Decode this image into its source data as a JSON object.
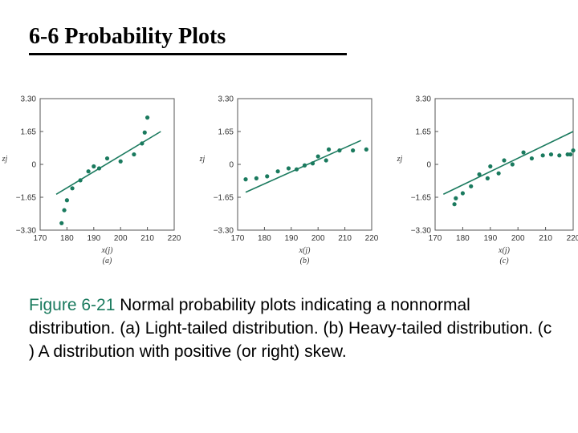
{
  "slide": {
    "title": "6-6 Probability Plots"
  },
  "caption": {
    "figure_label": "Figure 6-21",
    "text": " Normal probability plots indicating a nonnormal distribution. (a) Light-tailed distribution. (b) Heavy-tailed distribution. (c ) A distribution with positive (or right) skew."
  },
  "colors": {
    "series": "#1a7a5e",
    "axis": "#555555",
    "caption_label": "#1a7a5e"
  },
  "chart_data": [
    {
      "type": "scatter",
      "panel_label": "(a)",
      "xlabel": "x(j)",
      "ylabel": "zj",
      "xlim": [
        170,
        220
      ],
      "ylim": [
        -3.3,
        3.3
      ],
      "x_ticks": [
        "170",
        "180",
        "190",
        "200",
        "210",
        "220"
      ],
      "y_ticks": [
        "3.30",
        "1.65",
        "0",
        "−1.65",
        "−3.30"
      ],
      "points": [
        {
          "x": 178,
          "y": -2.95
        },
        {
          "x": 179,
          "y": -2.3
        },
        {
          "x": 180,
          "y": -1.8
        },
        {
          "x": 182,
          "y": -1.2
        },
        {
          "x": 185,
          "y": -0.8
        },
        {
          "x": 188,
          "y": -0.35
        },
        {
          "x": 190,
          "y": -0.1
        },
        {
          "x": 192,
          "y": -0.2
        },
        {
          "x": 195,
          "y": 0.3
        },
        {
          "x": 200,
          "y": 0.15
        },
        {
          "x": 205,
          "y": 0.5
        },
        {
          "x": 208,
          "y": 1.05
        },
        {
          "x": 209,
          "y": 1.6
        },
        {
          "x": 210,
          "y": 2.35
        }
      ],
      "fit_line": {
        "x": [
          176,
          215
        ],
        "y": [
          -1.5,
          1.65
        ]
      }
    },
    {
      "type": "scatter",
      "panel_label": "(b)",
      "xlabel": "x(j)",
      "ylabel": "zj",
      "xlim": [
        170,
        220
      ],
      "ylim": [
        -3.3,
        3.3
      ],
      "x_ticks": [
        "170",
        "180",
        "190",
        "200",
        "210",
        "220"
      ],
      "y_ticks": [
        "3.30",
        "1.65",
        "0",
        "−1.65",
        "−3.30"
      ],
      "points": [
        {
          "x": 173,
          "y": -0.75
        },
        {
          "x": 177,
          "y": -0.7
        },
        {
          "x": 181,
          "y": -0.6
        },
        {
          "x": 185,
          "y": -0.35
        },
        {
          "x": 189,
          "y": -0.2
        },
        {
          "x": 192,
          "y": -0.25
        },
        {
          "x": 195,
          "y": -0.05
        },
        {
          "x": 198,
          "y": 0.05
        },
        {
          "x": 200,
          "y": 0.4
        },
        {
          "x": 203,
          "y": 0.2
        },
        {
          "x": 204,
          "y": 0.75
        },
        {
          "x": 208,
          "y": 0.7
        },
        {
          "x": 213,
          "y": 0.7
        },
        {
          "x": 218,
          "y": 0.75
        }
      ],
      "fit_line": {
        "x": [
          173,
          216
        ],
        "y": [
          -1.4,
          1.2
        ]
      }
    },
    {
      "type": "scatter",
      "panel_label": "(c)",
      "xlabel": "x(j)",
      "ylabel": "zj",
      "xlim": [
        170,
        220
      ],
      "ylim": [
        -3.3,
        3.3
      ],
      "x_ticks": [
        "170",
        "180",
        "190",
        "200",
        "210",
        "220"
      ],
      "y_ticks": [
        "3.30",
        "1.65",
        "0",
        "−1.65",
        "−3.30"
      ],
      "points": [
        {
          "x": 177,
          "y": -2.0
        },
        {
          "x": 177.5,
          "y": -1.7
        },
        {
          "x": 180,
          "y": -1.45
        },
        {
          "x": 183,
          "y": -1.1
        },
        {
          "x": 186,
          "y": -0.5
        },
        {
          "x": 189,
          "y": -0.7
        },
        {
          "x": 190,
          "y": -0.1
        },
        {
          "x": 193,
          "y": -0.45
        },
        {
          "x": 195,
          "y": 0.2
        },
        {
          "x": 198,
          "y": 0.0
        },
        {
          "x": 202,
          "y": 0.6
        },
        {
          "x": 205,
          "y": 0.3
        },
        {
          "x": 209,
          "y": 0.45
        },
        {
          "x": 212,
          "y": 0.5
        },
        {
          "x": 215,
          "y": 0.45
        },
        {
          "x": 218,
          "y": 0.5
        },
        {
          "x": 219,
          "y": 0.5
        },
        {
          "x": 220,
          "y": 0.7
        }
      ],
      "fit_line": {
        "x": [
          173,
          220
        ],
        "y": [
          -1.5,
          1.65
        ]
      }
    }
  ]
}
